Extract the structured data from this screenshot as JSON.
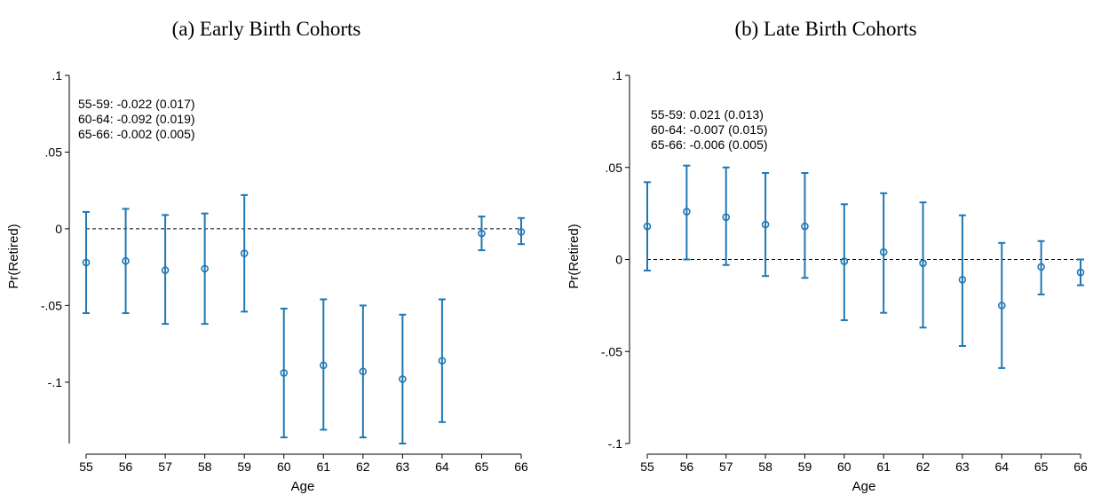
{
  "chart_data": [
    {
      "type": "scatter",
      "title": "(a) Early Birth Cohorts",
      "xlabel": "Age",
      "ylabel": "Pr(Retired)",
      "x": [
        55,
        56,
        57,
        58,
        59,
        60,
        61,
        62,
        63,
        64,
        65,
        66
      ],
      "xlim": [
        55,
        66
      ],
      "ylim": [
        -0.14,
        0.1
      ],
      "yticks": [
        0.1,
        0.05,
        0,
        -0.05,
        -0.1
      ],
      "ytick_labels": [
        ".1",
        ".05",
        "0",
        "-.05",
        "-.1"
      ],
      "reference_line": 0,
      "series": [
        {
          "values": [
            -0.022,
            -0.021,
            -0.027,
            -0.026,
            -0.016,
            -0.094,
            -0.089,
            -0.093,
            -0.098,
            -0.086,
            -0.003,
            -0.002
          ],
          "ci_low": [
            -0.055,
            -0.055,
            -0.062,
            -0.062,
            -0.054,
            -0.136,
            -0.131,
            -0.136,
            -0.14,
            -0.126,
            -0.014,
            -0.01
          ],
          "ci_high": [
            0.011,
            0.013,
            0.009,
            0.01,
            0.022,
            -0.052,
            -0.046,
            -0.05,
            -0.056,
            -0.046,
            0.008,
            0.007
          ],
          "color": "#1f77b4"
        }
      ],
      "annotations": [
        "55-59: -0.022 (0.017)",
        "60-64: -0.092 (0.019)",
        "65-66: -0.002 (0.005)"
      ]
    },
    {
      "type": "scatter",
      "title": "(b) Late Birth Cohorts",
      "xlabel": "Age",
      "ylabel": "Pr(Retired)",
      "x": [
        55,
        56,
        57,
        58,
        59,
        60,
        61,
        62,
        63,
        64,
        65,
        66
      ],
      "xlim": [
        55,
        66
      ],
      "ylim": [
        -0.1,
        0.1
      ],
      "yticks": [
        0.1,
        0.05,
        0,
        -0.05,
        -0.1
      ],
      "ytick_labels": [
        ".1",
        ".05",
        "0",
        "-.05",
        "-.1"
      ],
      "reference_line": 0,
      "series": [
        {
          "values": [
            0.018,
            0.026,
            0.023,
            0.019,
            0.018,
            -0.001,
            0.004,
            -0.002,
            -0.011,
            -0.025,
            -0.004,
            -0.007
          ],
          "ci_low": [
            -0.006,
            0.0,
            -0.003,
            -0.009,
            -0.01,
            -0.033,
            -0.029,
            -0.037,
            -0.047,
            -0.059,
            -0.019,
            -0.014
          ],
          "ci_high": [
            0.042,
            0.051,
            0.05,
            0.047,
            0.047,
            0.03,
            0.036,
            0.031,
            0.024,
            0.009,
            0.01,
            0.0
          ],
          "color": "#1f77b4"
        }
      ],
      "annotations": [
        "55-59: 0.021 (0.013)",
        "60-64: -0.007 (0.015)",
        "65-66: -0.006 (0.005)"
      ]
    }
  ]
}
